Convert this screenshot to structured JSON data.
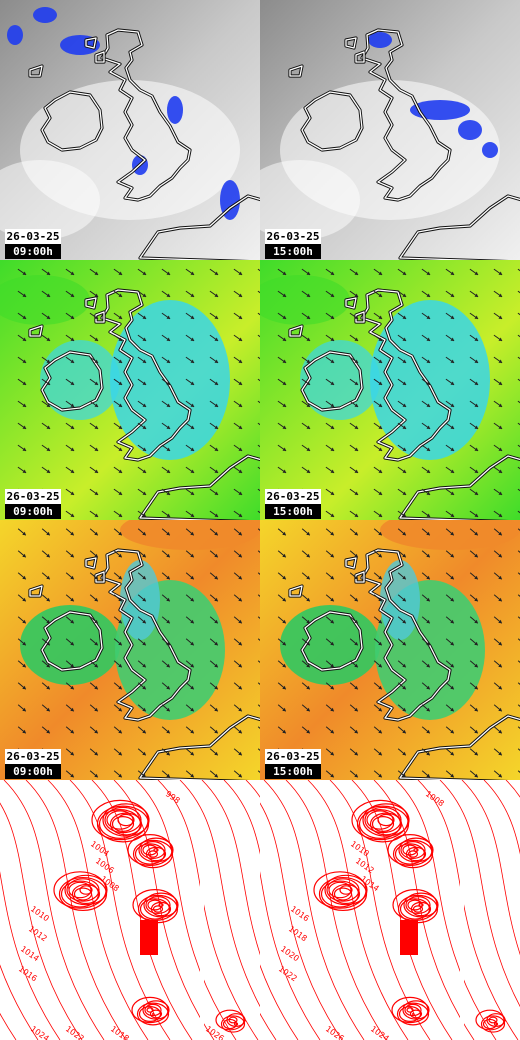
{
  "panels": [
    {
      "row": 0,
      "col": 0,
      "type": "cloud-precipitation",
      "date": "26-03-25",
      "time": "09:00h"
    },
    {
      "row": 0,
      "col": 1,
      "type": "cloud-precipitation",
      "date": "26-03-25",
      "time": "15:00h"
    },
    {
      "row": 1,
      "col": 0,
      "type": "wind",
      "date": "26-03-25",
      "time": "09:00h"
    },
    {
      "row": 1,
      "col": 1,
      "type": "wind",
      "date": "26-03-25",
      "time": "15:00h"
    },
    {
      "row": 2,
      "col": 0,
      "type": "gusts",
      "date": "26-03-25",
      "time": "09:00h"
    },
    {
      "row": 2,
      "col": 1,
      "type": "gusts",
      "date": "26-03-25",
      "time": "15:00h"
    },
    {
      "row": 3,
      "col": 0,
      "type": "isobars",
      "isobar_labels": [
        "998",
        "1004",
        "1006",
        "1008",
        "1010",
        "1012",
        "1014",
        "1016",
        "1018",
        "1022",
        "1024",
        "1026"
      ]
    },
    {
      "row": 3,
      "col": 1,
      "type": "isobars",
      "isobar_labels": [
        "1008",
        "1010",
        "1012",
        "1014",
        "1016",
        "1018",
        "1020",
        "1022",
        "1024",
        "1026"
      ]
    }
  ],
  "colors": {
    "precip": "#1f3cf0",
    "cloud_dark": "#8c8c8c",
    "cloud_light": "#f0f0f0",
    "wind_green": "#3fdc2a",
    "wind_cyan": "#39d6e8",
    "wind_yellow": "#c8ee2a",
    "gust_orange": "#f08a2a",
    "gust_yellow": "#f4d62a",
    "isobar": "#ff0000"
  }
}
